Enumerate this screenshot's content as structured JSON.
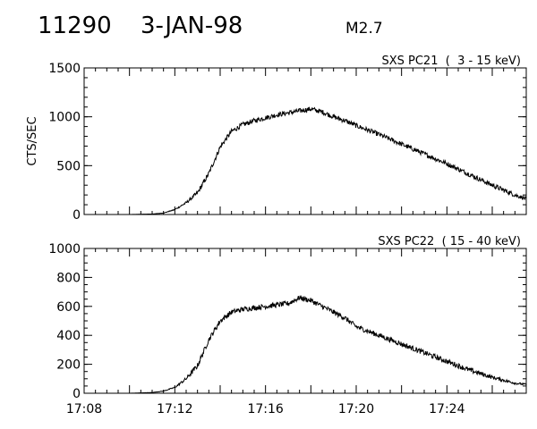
{
  "header": {
    "event_id": "11290",
    "date": "3-JAN-98",
    "flare_class": "M2.7"
  },
  "chart_data": [
    {
      "type": "line",
      "title": "SXS PC21  (  3 - 15 keV)",
      "ylabel": "CTS/SEC",
      "xlabel": "",
      "ylim": [
        0,
        1500
      ],
      "yticks": [
        0,
        500,
        1000,
        1500
      ],
      "y_minor_step": 100,
      "xlim": [
        "17:08",
        "17:27:30"
      ],
      "xticks": [],
      "grid": false,
      "series": [
        {
          "x": [
            "17:08",
            "17:09",
            "17:10",
            "17:11",
            "17:11:30",
            "17:12",
            "17:12:30",
            "17:13",
            "17:13:30",
            "17:14",
            "17:14:30",
            "17:15",
            "17:15:30",
            "17:16",
            "17:16:30",
            "17:17",
            "17:17:30",
            "17:18",
            "17:18:30",
            "17:19",
            "17:19:30",
            "17:20",
            "17:21",
            "17:22",
            "17:23",
            "17:24",
            "17:25",
            "17:26",
            "17:27",
            "17:27:30"
          ],
          "values": [
            0,
            0,
            0,
            5,
            15,
            50,
            120,
            220,
            420,
            690,
            850,
            920,
            960,
            990,
            1020,
            1040,
            1060,
            1080,
            1050,
            1000,
            960,
            910,
            820,
            720,
            620,
            520,
            410,
            300,
            200,
            160
          ],
          "noise": 25
        }
      ]
    },
    {
      "type": "line",
      "title": "SXS PC22  ( 15 - 40 keV)",
      "ylabel": "",
      "xlabel": "",
      "ylim": [
        0,
        1000
      ],
      "yticks": [
        0,
        200,
        400,
        600,
        800,
        1000
      ],
      "y_minor_step": 50,
      "xlim": [
        "17:08",
        "17:27:30"
      ],
      "xticks": [
        "17:08",
        "17:12",
        "17:16",
        "17:20",
        "17:24"
      ],
      "grid": false,
      "series": [
        {
          "x": [
            "17:08",
            "17:09",
            "17:10",
            "17:11",
            "17:11:30",
            "17:12",
            "17:12:30",
            "17:13",
            "17:13:30",
            "17:14",
            "17:14:30",
            "17:15",
            "17:15:30",
            "17:16",
            "17:16:30",
            "17:17",
            "17:17:30",
            "17:18",
            "17:18:30",
            "17:19",
            "17:19:30",
            "17:20",
            "17:21",
            "17:22",
            "17:23",
            "17:24",
            "17:25",
            "17:26",
            "17:27",
            "17:27:30"
          ],
          "values": [
            0,
            0,
            0,
            5,
            15,
            40,
            100,
            190,
            370,
            500,
            560,
            580,
            590,
            600,
            610,
            620,
            660,
            640,
            600,
            560,
            520,
            460,
            400,
            340,
            280,
            220,
            160,
            110,
            70,
            60
          ],
          "noise": 18
        }
      ]
    }
  ]
}
